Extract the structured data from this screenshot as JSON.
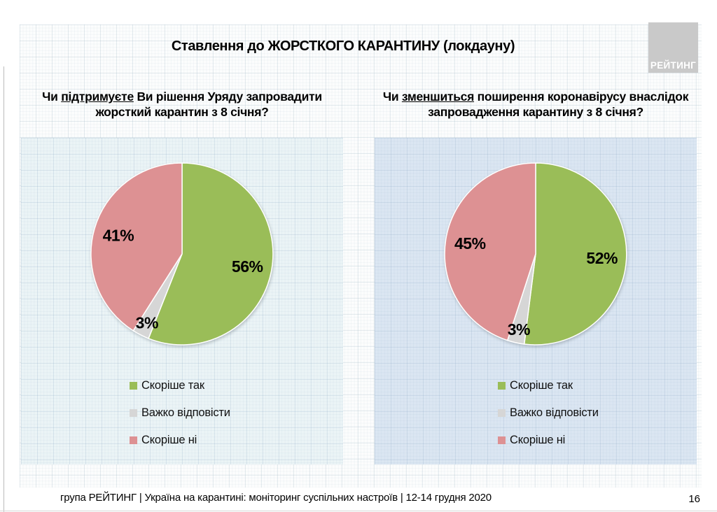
{
  "slide": {
    "title": "Ставлення до ЖОРСТКОГО КАРАНТИНУ (локдауну)",
    "logo_text": "РЕЙТИНГ",
    "footer": "група РЕЙТИНГ | Україна на карантині: моніторинг суспільних настроїв | 12-14 грудня 2020",
    "page_number": "16"
  },
  "questions": [
    {
      "pre": "Чи ",
      "underlined": "підтримуєте",
      "post": " Ви рішення Уряду запровадити\nжорсткий карантин з 8 січня?"
    },
    {
      "pre": "Чи ",
      "underlined": "зменшиться",
      "post": " поширення коронавірусу внаслідок\nзапровадження карантину з 8 січня?"
    }
  ],
  "chart_data": [
    {
      "type": "pie",
      "title": "Чи підтримуєте Ви рішення Уряду запровадити жорсткий карантин з 8 січня?",
      "categories": [
        "Скоріше так",
        "Важко відповісти",
        "Скоріше ні"
      ],
      "values": [
        56,
        3,
        41
      ],
      "data_labels": [
        "56%",
        "3%",
        "41%"
      ],
      "colors": [
        "#9abd58",
        "#d6d6d6",
        "#dd9193"
      ],
      "start_angle": "top",
      "direction": "clockwise",
      "legend_position": "bottom",
      "panel_background": "#ebf4f6"
    },
    {
      "type": "pie",
      "title": "Чи зменшиться поширення коронавірусу внаслідок запровадження карантину з 8 січня?",
      "categories": [
        "Скоріше так",
        "Важко відповісти",
        "Скоріше ні"
      ],
      "values": [
        52,
        3,
        45
      ],
      "data_labels": [
        "52%",
        "3%",
        "45%"
      ],
      "colors": [
        "#9abd58",
        "#d6d6d6",
        "#dd9193"
      ],
      "start_angle": "top",
      "direction": "clockwise",
      "legend_position": "bottom",
      "panel_background": "#dbe6f2"
    }
  ]
}
